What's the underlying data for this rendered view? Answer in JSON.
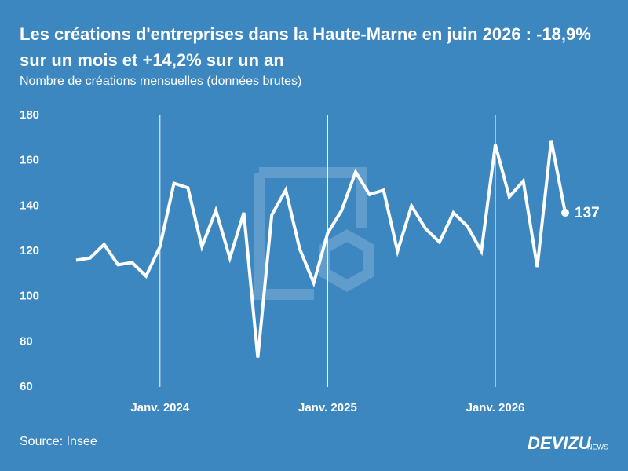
{
  "chart_data": {
    "type": "line",
    "title": "Les créations d'entreprises dans la Haute-Marne en juin 2026 : -18,9% sur un mois et +14,2% sur un an",
    "subtitle": "Nombre de créations mensuelles (données brutes)",
    "source": "Source: Insee",
    "brand": "DEVIZU",
    "brand_suffix": "NEWS",
    "categories": [
      null,
      null,
      null,
      null,
      null,
      null,
      "Janv. 2024",
      null,
      null,
      null,
      null,
      null,
      null,
      null,
      null,
      null,
      null,
      null,
      "Janv. 2025",
      null,
      null,
      null,
      null,
      null,
      null,
      null,
      null,
      null,
      null,
      null,
      "Janv. 2026",
      null,
      null,
      null,
      null,
      null
    ],
    "series": [
      {
        "name": "Créations",
        "color": "#ffffff",
        "values": [
          116,
          117,
          123,
          114,
          115,
          109,
          122,
          150,
          148,
          122,
          138,
          117,
          137,
          73,
          136,
          147,
          121,
          106,
          128,
          138,
          155,
          145,
          147,
          120,
          140,
          130,
          124,
          137,
          131,
          120,
          167,
          144,
          151,
          113,
          169,
          137
        ]
      }
    ],
    "ylim": [
      60,
      180
    ],
    "yticks": [
      60,
      80,
      100,
      120,
      140,
      160,
      180
    ],
    "grid": false,
    "background": "#3d87c1"
  }
}
